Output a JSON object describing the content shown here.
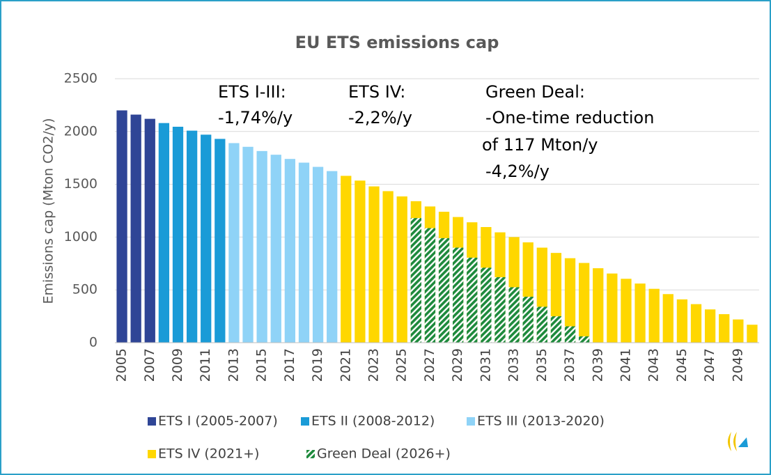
{
  "chart_data": {
    "type": "bar",
    "title": "EU ETS emissions cap",
    "y_label": "Emissions cap (Mton CO2/y)",
    "categories": [
      "2005",
      null,
      "2007",
      null,
      "2009",
      null,
      "2011",
      null,
      "2013",
      null,
      "2015",
      null,
      "2017",
      null,
      "2019",
      null,
      "2021",
      null,
      "2023",
      null,
      "2025",
      null,
      "2027",
      null,
      "2029",
      null,
      "2031",
      null,
      "2033",
      null,
      "2035",
      null,
      "2037",
      null,
      "2039",
      null,
      "2041",
      null,
      "2043",
      null,
      "2045",
      null,
      "2047",
      null,
      "2049",
      null
    ],
    "series": [
      {
        "name": "ETS I (2005-2007)",
        "color": "#2f4596",
        "values": [
          2200,
          2160,
          2120,
          null,
          null,
          null,
          null,
          null,
          null,
          null,
          null,
          null,
          null,
          null,
          null,
          null,
          null,
          null,
          null,
          null,
          null,
          null,
          null,
          null,
          null,
          null,
          null,
          null,
          null,
          null,
          null,
          null,
          null,
          null,
          null,
          null,
          null,
          null,
          null,
          null,
          null,
          null,
          null,
          null,
          null,
          null
        ]
      },
      {
        "name": "ETS II (2008-2012)",
        "color": "#1a9bd7",
        "values": [
          null,
          null,
          null,
          2080,
          2045,
          2008,
          1970,
          1930,
          null,
          null,
          null,
          null,
          null,
          null,
          null,
          null,
          null,
          null,
          null,
          null,
          null,
          null,
          null,
          null,
          null,
          null,
          null,
          null,
          null,
          null,
          null,
          null,
          null,
          null,
          null,
          null,
          null,
          null,
          null,
          null,
          null,
          null,
          null,
          null,
          null,
          null
        ]
      },
      {
        "name": "ETS III (2013-2020)",
        "color": "#8fd3f7",
        "values": [
          null,
          null,
          null,
          null,
          null,
          null,
          null,
          null,
          1890,
          1855,
          1815,
          1780,
          1740,
          1705,
          1665,
          1625,
          null,
          null,
          null,
          null,
          null,
          null,
          null,
          null,
          null,
          null,
          null,
          null,
          null,
          null,
          null,
          null,
          null,
          null,
          null,
          null,
          null,
          null,
          null,
          null,
          null,
          null,
          null,
          null,
          null,
          null
        ]
      },
      {
        "name": "ETS IV (2021+)",
        "color": "#ffd700",
        "values": [
          null,
          null,
          null,
          null,
          null,
          null,
          null,
          null,
          null,
          null,
          null,
          null,
          null,
          null,
          null,
          null,
          1580,
          1535,
          1480,
          1435,
          1385,
          1340,
          1290,
          1240,
          1190,
          1140,
          1095,
          1045,
          1000,
          950,
          900,
          850,
          800,
          755,
          705,
          655,
          605,
          560,
          510,
          460,
          410,
          365,
          315,
          270,
          220,
          170
        ]
      },
      {
        "name": "Green Deal (2026+)",
        "color": "#1e8a3c",
        "pattern": "hatch",
        "values": [
          null,
          null,
          null,
          null,
          null,
          null,
          null,
          null,
          null,
          null,
          null,
          null,
          null,
          null,
          null,
          null,
          null,
          null,
          null,
          null,
          null,
          1180,
          1085,
          990,
          900,
          805,
          710,
          620,
          525,
          435,
          340,
          250,
          155,
          60,
          null,
          null,
          null,
          null,
          null,
          null,
          null,
          null,
          null,
          null,
          null,
          null
        ]
      }
    ],
    "ylim": [
      0,
      2500
    ],
    "yticks": [
      0,
      500,
      1000,
      1500,
      2000,
      2500
    ],
    "grid": true,
    "annotations": [
      {
        "lines": [
          "ETS I-III:",
          "-1,74%/y"
        ]
      },
      {
        "lines": [
          "ETS IV:",
          "-2,2%/y"
        ]
      },
      {
        "lines": [
          "Green Deal:",
          "-One-time reduction",
          "of 117 Mton/y",
          "-4,2%/y"
        ]
      }
    ],
    "legend": "bottom"
  }
}
